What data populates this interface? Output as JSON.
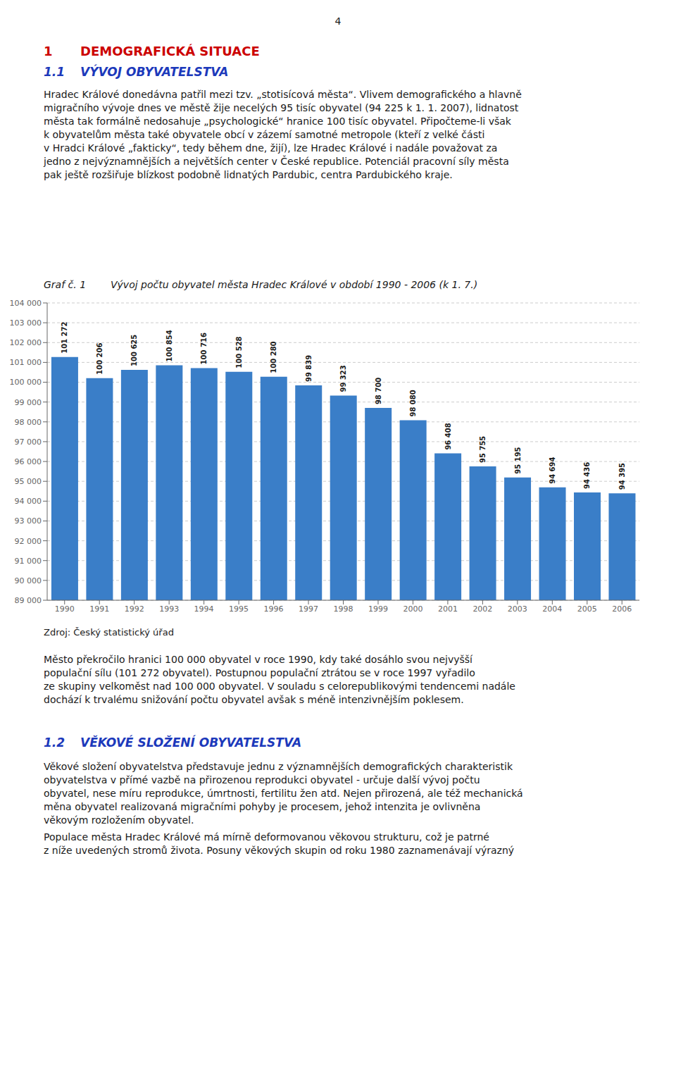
{
  "page_number": "4",
  "text_color": "#1A1A1A",
  "section": {
    "number": "1",
    "title": "DEMOGRAFICKÁ SITUACE",
    "color": "#CC0000"
  },
  "subsection_color": "#1C39BB",
  "subsections": [
    {
      "number": "1.1",
      "title": "VÝVOJ OBYVATELSTVA",
      "paragraphs": [
        [
          "Hradec Králové donedávna patřil mezi tzv. „stotisícová města“. Vlivem demografického a hlavně",
          "migračního vývoje dnes ve městě žije necelých 95 tisíc obyvatel (94 225 k 1. 1. 2007), lidnatost",
          "města tak formálně nedosahuje „psychologické“ hranice 100 tisíc obyvatel. Připočteme-li však",
          "k obyvatelům města také obyvatele obcí v zázemí samotné metropole (kteří z velké části",
          "v Hradci Králové „fakticky“, tedy během dne, žijí), lze Hradec Králové i nadále považovat za",
          "jedno z nejvýznamnějších a největších center v České republice. Potenciál pracovní síly města",
          "pak ještě rozšiřuje blízkost podobně lidnatých Pardubic, centra Pardubického kraje."
        ],
        [
          "Město překročilo hranici 100 000 obyvatel v roce 1990, kdy také dosáhlo svou nejvyšší",
          "populační sílu (101 272 obyvatel). Postupnou populační ztrátou se v roce 1997 vyřadilo",
          "ze skupiny velkoměst nad 100 000 obyvatel. V souladu s celorepublikovými tendencemi nadále",
          "dochází k trvalému snižování počtu obyvatel avšak s méně intenzivnějším poklesem."
        ]
      ]
    },
    {
      "number": "1.2",
      "title": "VĚKOVÉ SLOŽENÍ OBYVATELSTVA",
      "paragraphs": [
        [
          "Věkové složení obyvatelstva představuje jednu z významnějších demografických charakteristik",
          "obyvatelstva v přímé vazbě na přirozenou reprodukci obyvatel - určuje další vývoj počtu",
          "obyvatel, nese míru reprodukce, úmrtnosti, fertilitu žen atd. Nejen přirozená, ale též mechanická",
          "měna obyvatel realizovaná migračními pohyby je procesem, jehož intenzita je ovlivněna",
          "věkovým rozložením obyvatel."
        ],
        [
          "Populace města Hradec Králové má mírně deformovanou věkovou strukturu, což je patrné",
          "z níže uvedených stromů života. Posuny věkových skupin od roku 1980 zaznamenávají výrazný"
        ]
      ]
    }
  ],
  "chart_data": {
    "type": "bar",
    "label": "Graf č. 1",
    "title": "Vývoj počtu obyvatel města Hradec Králové v období 1990 - 2006 (k 1. 7.)",
    "source": "Zdroj: Český statistický úřad",
    "categories": [
      "1990",
      "1991",
      "1992",
      "1993",
      "1994",
      "1995",
      "1996",
      "1997",
      "1998",
      "1999",
      "2000",
      "2001",
      "2002",
      "2003",
      "2004",
      "2005",
      "2006"
    ],
    "values": [
      101272,
      100206,
      100625,
      100854,
      100716,
      100528,
      100280,
      99839,
      99323,
      98700,
      98080,
      96408,
      95755,
      95195,
      94694,
      94436,
      94395
    ],
    "value_labels": [
      "101 272",
      "100 206",
      "100 625",
      "100 854",
      "100 716",
      "100 528",
      "100 280",
      "99 839",
      "99 323",
      "98 700",
      "98 080",
      "96 408",
      "95 755",
      "95 195",
      "94 694",
      "94 436",
      "94 395"
    ],
    "data_labels": true,
    "color": "#3A7EC8",
    "ylim": [
      89000,
      104000
    ],
    "yticks": [
      {
        "value": 89000,
        "label": "89 000"
      },
      {
        "value": 90000,
        "label": "90 000"
      },
      {
        "value": 91000,
        "label": "91 000"
      },
      {
        "value": 92000,
        "label": "92 000"
      },
      {
        "value": 93000,
        "label": "93 000"
      },
      {
        "value": 94000,
        "label": "94 000"
      },
      {
        "value": 95000,
        "label": "95 000"
      },
      {
        "value": 96000,
        "label": "96 000"
      },
      {
        "value": 97000,
        "label": "97 000"
      },
      {
        "value": 98000,
        "label": "98 000"
      },
      {
        "value": 99000,
        "label": "99 000"
      },
      {
        "value": 100000,
        "label": "100 000"
      },
      {
        "value": 101000,
        "label": "101 000"
      },
      {
        "value": 102000,
        "label": "102 000"
      },
      {
        "value": 103000,
        "label": "103 000"
      },
      {
        "value": 104000,
        "label": "104 000"
      }
    ],
    "grid": true
  }
}
